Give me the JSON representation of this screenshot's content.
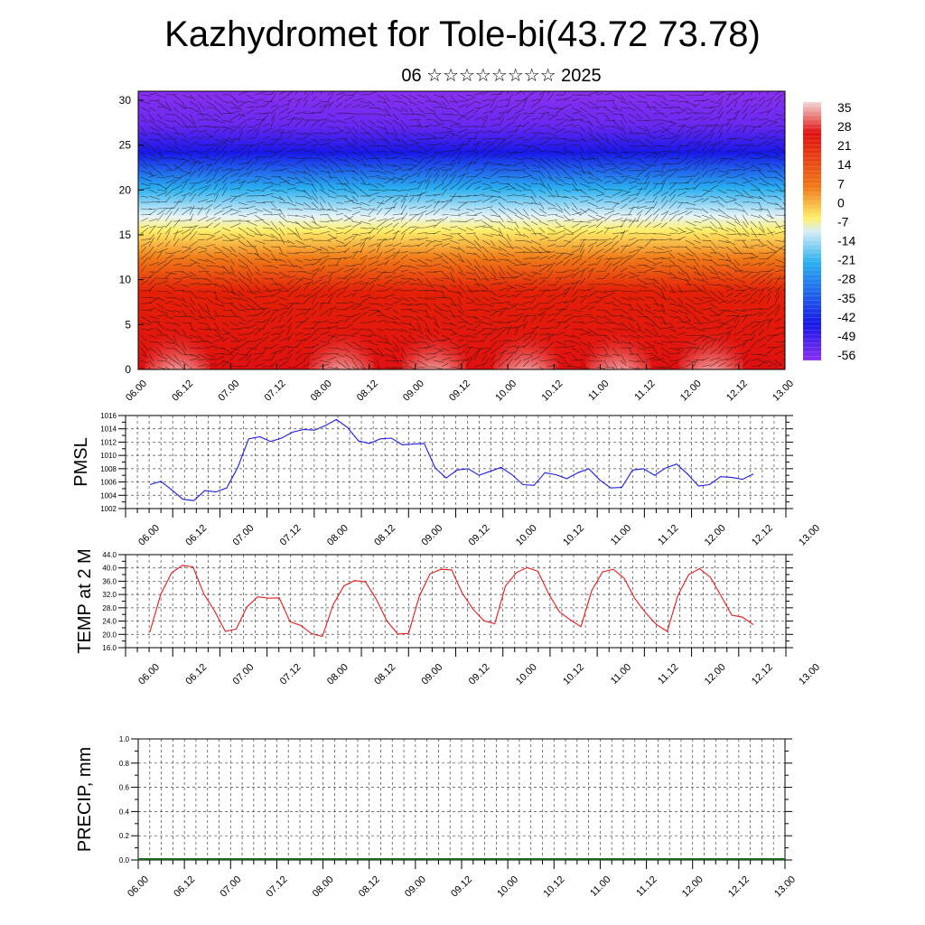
{
  "title": "Kazhydromet for Tole-bi(43.72 73.78)",
  "subtitle": "06 ☆☆☆☆☆☆☆☆ 2025",
  "chart_data": [
    {
      "type": "heatmap",
      "ylim": [
        0,
        31
      ],
      "yticks": [
        "0",
        "5",
        "10",
        "15",
        "20",
        "25",
        "30"
      ],
      "ytick_values": [
        0,
        5,
        10,
        15,
        20,
        25,
        30
      ],
      "xticks": [
        "06.00",
        "06.12",
        "07.00",
        "07.12",
        "08.00",
        "08.12",
        "09.00",
        "09.12",
        "10.00",
        "10.12",
        "11.00",
        "11.12",
        "12.00",
        "12.12",
        "13.00"
      ],
      "colorbar_labels": [
        "35",
        "28",
        "21",
        "14",
        "7",
        "0",
        "-7",
        "-14",
        "-21",
        "-28",
        "-35",
        "-42",
        "-49",
        "-56"
      ],
      "colorbar_values": [
        35,
        28,
        21,
        14,
        7,
        0,
        -7,
        -14,
        -21,
        -28,
        -35,
        -42,
        -49,
        -56
      ],
      "colors": {
        "hot": "#f2c4c4",
        "warm": "#e01010",
        "orange": "#f07a18",
        "yellow": "#fff06a",
        "pale": "#d8eef6",
        "cyan": "#2ab0f0",
        "blue": "#1818e8",
        "violet": "#8a30f0"
      },
      "vectors": "wind barbs overlay"
    },
    {
      "type": "line",
      "ylabel": "PMSL",
      "ylim": [
        1002,
        1016
      ],
      "yticks": [
        "1002",
        "1004",
        "1006",
        "1008",
        "1010",
        "1012",
        "1014",
        "1016"
      ],
      "ytick_values": [
        1002,
        1004,
        1006,
        1008,
        1010,
        1012,
        1014,
        1016
      ],
      "xticks": [
        "06.00",
        "06.12",
        "07.00",
        "07.12",
        "08.00",
        "08.12",
        "09.00",
        "09.12",
        "10.00",
        "10.12",
        "11.00",
        "11.12",
        "12.00",
        "12.12",
        "13.00"
      ],
      "color": "#1a1ae6",
      "values": [
        1005.6,
        1006.1,
        1004.8,
        1003.4,
        1003.2,
        1004.7,
        1004.5,
        1005.1,
        1008.2,
        1012.5,
        1012.8,
        1012.1,
        1012.6,
        1013.5,
        1013.9,
        1013.8,
        1014.5,
        1015.4,
        1014.2,
        1012.2,
        1011.8,
        1012.5,
        1012.6,
        1011.6,
        1011.7,
        1011.8,
        1008.1,
        1006.6,
        1007.8,
        1008.0,
        1007.0,
        1007.6,
        1008.2,
        1007.1,
        1005.6,
        1005.5,
        1007.4,
        1007.1,
        1006.5,
        1007.4,
        1008.0,
        1006.3,
        1005.1,
        1005.2,
        1007.8,
        1008.0,
        1007.0,
        1008.1,
        1008.7,
        1007.2,
        1005.4,
        1005.6,
        1006.8,
        1006.7,
        1006.4,
        1007.2
      ]
    },
    {
      "type": "line",
      "ylabel": "TEMP at 2 M",
      "ylim": [
        16,
        44
      ],
      "yticks": [
        "16.0",
        "20.0",
        "24.0",
        "28.0",
        "32.0",
        "36.0",
        "40.0",
        "44.0"
      ],
      "ytick_values": [
        16,
        20,
        24,
        28,
        32,
        36,
        40,
        44
      ],
      "xticks": [
        "06.00",
        "06.12",
        "07.00",
        "07.12",
        "08.00",
        "08.12",
        "09.00",
        "09.12",
        "10.00",
        "10.12",
        "11.00",
        "11.12",
        "12.00",
        "12.12",
        "13.00"
      ],
      "color": "#e61a1a",
      "values": [
        20.8,
        32.0,
        38.5,
        40.8,
        40.3,
        32.2,
        27.0,
        20.9,
        21.6,
        28.3,
        31.3,
        30.9,
        31.0,
        23.8,
        22.7,
        20.2,
        19.4,
        28.9,
        34.6,
        36.2,
        35.8,
        30.6,
        24.0,
        20.1,
        20.3,
        31.5,
        38.2,
        39.6,
        39.4,
        32.3,
        27.5,
        24.1,
        23.2,
        34.6,
        38.6,
        40.1,
        39.0,
        32.2,
        26.8,
        24.4,
        22.3,
        33.2,
        38.8,
        39.6,
        36.9,
        30.8,
        26.5,
        23.0,
        20.9,
        31.8,
        38.0,
        39.8,
        37.2,
        31.6,
        25.8,
        25.2,
        22.9
      ]
    },
    {
      "type": "bar",
      "ylabel": "PRECIP, mm",
      "ylim": [
        0,
        1
      ],
      "yticks": [
        "0.0",
        "0.2",
        "0.4",
        "0.6",
        "0.8",
        "1.0"
      ],
      "ytick_values": [
        0,
        0.2,
        0.4,
        0.6,
        0.8,
        1.0
      ],
      "xticks": [
        "06.00",
        "06.12",
        "07.00",
        "07.12",
        "08.00",
        "08.12",
        "09.00",
        "09.12",
        "10.00",
        "10.12",
        "11.00",
        "11.12",
        "12.00",
        "12.12",
        "13.00"
      ],
      "color": "#1a6b1a",
      "values": []
    }
  ]
}
